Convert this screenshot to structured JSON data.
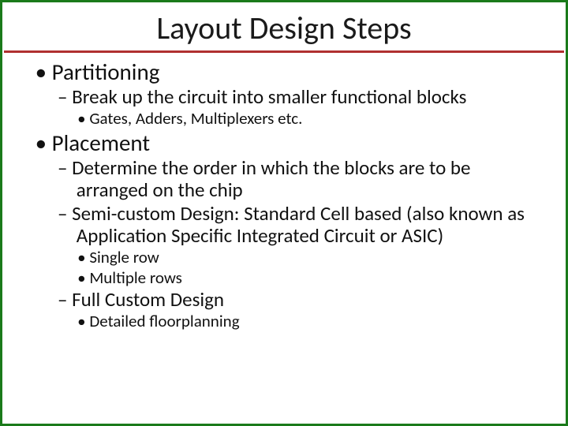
{
  "slide": {
    "title": "Layout Design Steps",
    "border_color": "#1a7a1a",
    "title_underline_color": "#b03030",
    "background_color": "#ffffff",
    "title_fontsize": 40,
    "body_font_family": "Calibri",
    "bullets": {
      "partitioning": {
        "label": "Partitioning",
        "sub1": "Break up the circuit into smaller functional blocks",
        "sub1a": "Gates, Adders, Multiplexers etc."
      },
      "placement": {
        "label": "Placement",
        "sub1": "Determine the order in which the blocks are to be arranged on the chip",
        "sub2": "Semi-custom Design: Standard Cell based (also known as Application Specific Integrated Circuit or ASIC)",
        "sub2a": "Single row",
        "sub2b": "Multiple rows",
        "sub3": "Full Custom Design",
        "sub3a": "Detailed floorplanning"
      }
    }
  }
}
